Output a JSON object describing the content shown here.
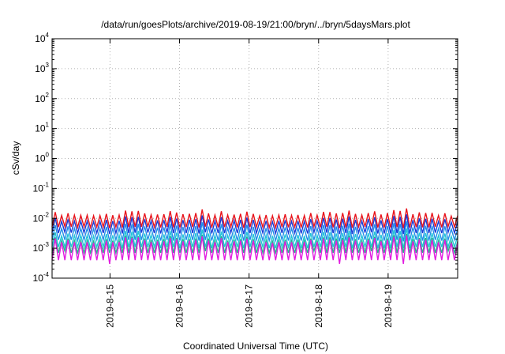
{
  "chart_data": {
    "type": "line",
    "title": "/data/run/goesPlots/archive/2019-08-19/21:00/bryn/../bryn/5daysMars.plot",
    "xlabel": "Coordinated Universal Time (UTC)",
    "ylabel": "cSv/day",
    "x_range": [
      "2019-08-14 04:00",
      "2019-08-20 00:00"
    ],
    "yscale": "log",
    "ylim": [
      0.0001,
      10000
    ],
    "y_ticks": [
      {
        "base": "10",
        "exp": "-4",
        "value": 0.0001
      },
      {
        "base": "10",
        "exp": "-3",
        "value": 0.001
      },
      {
        "base": "10",
        "exp": "-2",
        "value": 0.01
      },
      {
        "base": "10",
        "exp": "-1",
        "value": 0.1
      },
      {
        "base": "10",
        "exp": "0",
        "value": 1
      },
      {
        "base": "10",
        "exp": "1",
        "value": 10
      },
      {
        "base": "10",
        "exp": "2",
        "value": 100
      },
      {
        "base": "10",
        "exp": "3",
        "value": 1000
      },
      {
        "base": "10",
        "exp": "4",
        "value": 10000
      }
    ],
    "x_ticks": [
      {
        "label": "2019-8-15",
        "value": "2019-08-15 00:00"
      },
      {
        "label": "2019-8-16",
        "value": "2019-08-16 00:00"
      },
      {
        "label": "2019-8-17",
        "value": "2019-08-17 00:00"
      },
      {
        "label": "2019-8-18",
        "value": "2019-08-18 00:00"
      },
      {
        "label": "2019-8-19",
        "value": "2019-08-19 00:00"
      }
    ],
    "grid": true,
    "series": [
      {
        "color": "#e8141c",
        "values": [
          0.0052,
          0.0161,
          0.0051,
          0.0125,
          0.0053,
          0.0147,
          0.0052,
          0.0128,
          0.005,
          0.0126,
          0.0052,
          0.0128,
          0.0049,
          0.0122,
          0.0051,
          0.0124,
          0.0051,
          0.014,
          0.0047,
          0.0127,
          0.0051,
          0.0129,
          0.0049,
          0.0181,
          0.0051,
          0.0171,
          0.0052,
          0.0177,
          0.0052,
          0.0146,
          0.0052,
          0.013,
          0.0051,
          0.0134,
          0.0049,
          0.0137,
          0.0052,
          0.0174,
          0.005,
          0.0155,
          0.0049,
          0.0138,
          0.0051,
          0.0142,
          0.0051,
          0.0149,
          0.0049,
          0.0197,
          0.0053,
          0.0145,
          0.0049,
          0.0128,
          0.005,
          0.0172,
          0.0051,
          0.0129,
          0.0052,
          0.0133,
          0.005,
          0.0141,
          0.0048,
          0.0166,
          0.0051,
          0.014,
          0.0051,
          0.0121,
          0.005,
          0.0129,
          0.0049,
          0.0122,
          0.0049,
          0.0129,
          0.0051,
          0.0136,
          0.005,
          0.0125,
          0.0051,
          0.013,
          0.0049,
          0.0124,
          0.0049,
          0.0149,
          0.0053,
          0.0127,
          0.005,
          0.0163,
          0.0052,
          0.0161,
          0.005,
          0.0145,
          0.0047,
          0.0151,
          0.005,
          0.0181,
          0.0048,
          0.014,
          0.0052,
          0.0128,
          0.0052,
          0.015,
          0.0054,
          0.0171,
          0.0049,
          0.0134,
          0.0049,
          0.0149,
          0.0049,
          0.0188,
          0.0051,
          0.0177,
          0.0047,
          0.0213,
          0.0049,
          0.0137,
          0.0051,
          0.0157,
          0.005,
          0.0151,
          0.005,
          0.0152,
          0.0052,
          0.0125,
          0.005,
          0.0147,
          0.0053,
          0.0119,
          0.0051,
          0.0122
        ]
      },
      {
        "color": "#1a3bd6",
        "values": [
          0.0033,
          0.0102,
          0.0032,
          0.0079,
          0.0034,
          0.0093,
          0.0033,
          0.0081,
          0.0032,
          0.008,
          0.0033,
          0.0081,
          0.0031,
          0.0077,
          0.0032,
          0.0079,
          0.0032,
          0.0089,
          0.003,
          0.0081,
          0.0032,
          0.0082,
          0.0031,
          0.0115,
          0.0032,
          0.0108,
          0.0033,
          0.0112,
          0.0033,
          0.0093,
          0.0033,
          0.0082,
          0.0032,
          0.0085,
          0.0031,
          0.0087,
          0.0033,
          0.011,
          0.0032,
          0.0098,
          0.0031,
          0.0087,
          0.0032,
          0.009,
          0.0032,
          0.0094,
          0.0031,
          0.0125,
          0.0034,
          0.0092,
          0.0031,
          0.0081,
          0.0032,
          0.0109,
          0.0032,
          0.0082,
          0.0033,
          0.0084,
          0.0032,
          0.0089,
          0.003,
          0.0105,
          0.0032,
          0.0089,
          0.0032,
          0.0077,
          0.0032,
          0.0082,
          0.0031,
          0.0077,
          0.0031,
          0.0082,
          0.0032,
          0.0086,
          0.0032,
          0.0079,
          0.0032,
          0.0082,
          0.0031,
          0.0079,
          0.0031,
          0.0094,
          0.0034,
          0.0081,
          0.0032,
          0.0103,
          0.0033,
          0.0102,
          0.0032,
          0.0092,
          0.003,
          0.0096,
          0.0032,
          0.0115,
          0.003,
          0.0089,
          0.0033,
          0.0081,
          0.0033,
          0.0095,
          0.0034,
          0.0108,
          0.0031,
          0.0085,
          0.0031,
          0.0094,
          0.0031,
          0.0119,
          0.0032,
          0.0112,
          0.003,
          0.0135,
          0.0031,
          0.0087,
          0.0032,
          0.0099,
          0.0032,
          0.0096,
          0.0032,
          0.0096,
          0.0033,
          0.0079,
          0.0032,
          0.0093,
          0.0034,
          0.0075,
          0.0032,
          0.0077
        ]
      },
      {
        "color": "#1f8ee8",
        "values": [
          0.0019,
          0.0059,
          0.0019,
          0.0046,
          0.0019,
          0.0054,
          0.0019,
          0.0047,
          0.0018,
          0.0046,
          0.0019,
          0.0047,
          0.0018,
          0.0045,
          0.0019,
          0.0046,
          0.0019,
          0.0052,
          0.0017,
          0.0047,
          0.0019,
          0.0047,
          0.0018,
          0.0066,
          0.0019,
          0.0063,
          0.0019,
          0.0065,
          0.0019,
          0.0054,
          0.0019,
          0.0048,
          0.0019,
          0.0049,
          0.0018,
          0.005,
          0.0019,
          0.0064,
          0.0018,
          0.0057,
          0.0018,
          0.0051,
          0.0019,
          0.0052,
          0.0019,
          0.0055,
          0.0018,
          0.0073,
          0.0019,
          0.0053,
          0.0018,
          0.0047,
          0.0018,
          0.0063,
          0.0019,
          0.0047,
          0.0019,
          0.0049,
          0.0018,
          0.0052,
          0.0018,
          0.0061,
          0.0019,
          0.0052,
          0.0019,
          0.0045,
          0.0018,
          0.0047,
          0.0018,
          0.0045,
          0.0018,
          0.0047,
          0.0019,
          0.005,
          0.0018,
          0.0046,
          0.0019,
          0.0048,
          0.0018,
          0.0046,
          0.0018,
          0.0055,
          0.0019,
          0.0047,
          0.0018,
          0.006,
          0.0019,
          0.0059,
          0.0018,
          0.0053,
          0.0017,
          0.0056,
          0.0018,
          0.0066,
          0.0018,
          0.0052,
          0.0019,
          0.0047,
          0.0019,
          0.0055,
          0.002,
          0.0063,
          0.0018,
          0.0049,
          0.0018,
          0.0055,
          0.0018,
          0.0069,
          0.0019,
          0.0065,
          0.0017,
          0.0078,
          0.0018,
          0.005,
          0.0019,
          0.0058,
          0.0018,
          0.0056,
          0.0018,
          0.0056,
          0.0019,
          0.0046,
          0.0018,
          0.0054,
          0.0019,
          0.0044,
          0.0019,
          0.0045
        ]
      },
      {
        "color": "#20c4d8",
        "values": [
          0.0011,
          0.0034,
          0.0011,
          0.0026,
          0.0011,
          0.0031,
          0.0011,
          0.0027,
          0.0011,
          0.0027,
          0.0011,
          0.0027,
          0.001,
          0.0026,
          0.0011,
          0.0026,
          0.0011,
          0.003,
          0.001,
          0.0027,
          0.0011,
          0.0027,
          0.001,
          0.0038,
          0.0011,
          0.0036,
          0.0011,
          0.0038,
          0.0011,
          0.0031,
          0.0011,
          0.0028,
          0.0011,
          0.0028,
          0.001,
          0.0029,
          0.0011,
          0.0037,
          0.0011,
          0.0033,
          0.001,
          0.0029,
          0.0011,
          0.003,
          0.0011,
          0.0032,
          0.001,
          0.0042,
          0.0011,
          0.0031,
          0.001,
          0.0027,
          0.0011,
          0.0036,
          0.0011,
          0.0027,
          0.0011,
          0.0028,
          0.0011,
          0.003,
          0.001,
          0.0035,
          0.0011,
          0.003,
          0.0011,
          0.0026,
          0.0011,
          0.0027,
          0.001,
          0.0026,
          0.001,
          0.0027,
          0.0011,
          0.0029,
          0.0011,
          0.0026,
          0.0011,
          0.0028,
          0.001,
          0.0026,
          0.001,
          0.0032,
          0.0011,
          0.0027,
          0.0011,
          0.0035,
          0.0011,
          0.0034,
          0.0011,
          0.0031,
          0.001,
          0.0032,
          0.0011,
          0.0038,
          0.001,
          0.003,
          0.0011,
          0.0027,
          0.0011,
          0.0032,
          0.0011,
          0.0036,
          0.001,
          0.0028,
          0.001,
          0.0032,
          0.001,
          0.004,
          0.0011,
          0.0038,
          0.001,
          0.0045,
          0.001,
          0.0029,
          0.0011,
          0.0033,
          0.0011,
          0.0032,
          0.0011,
          0.0032,
          0.0011,
          0.0027,
          0.0011,
          0.0031,
          0.0011,
          0.0025,
          0.0011,
          0.0026
        ]
      },
      {
        "color": "#2ab08a",
        "values": [
          0.0007,
          0.0023,
          0.0007,
          0.0018,
          0.0008,
          0.0021,
          0.0007,
          0.0018,
          0.0007,
          0.0018,
          0.0007,
          0.0018,
          0.0007,
          0.0017,
          0.0007,
          0.0018,
          0.0007,
          0.002,
          0.0007,
          0.0018,
          0.0007,
          0.0018,
          0.0007,
          0.0026,
          0.0007,
          0.0024,
          0.0007,
          0.0025,
          0.0007,
          0.0021,
          0.0007,
          0.0019,
          0.0007,
          0.0019,
          0.0007,
          0.002,
          0.0007,
          0.0025,
          0.0007,
          0.0022,
          0.0007,
          0.002,
          0.0007,
          0.002,
          0.0007,
          0.0021,
          0.0007,
          0.0028,
          0.0008,
          0.0021,
          0.0007,
          0.0018,
          0.0007,
          0.0025,
          0.0007,
          0.0018,
          0.0007,
          0.0019,
          0.0007,
          0.002,
          0.0007,
          0.0024,
          0.0007,
          0.002,
          0.0007,
          0.0017,
          0.0007,
          0.0018,
          0.0007,
          0.0017,
          0.0007,
          0.0018,
          0.0007,
          0.0019,
          0.0007,
          0.0018,
          0.0007,
          0.0019,
          0.0007,
          0.0018,
          0.0007,
          0.0021,
          0.0008,
          0.0018,
          0.0007,
          0.0023,
          0.0007,
          0.0023,
          0.0007,
          0.0021,
          0.0007,
          0.0022,
          0.0007,
          0.0026,
          0.0007,
          0.002,
          0.0007,
          0.0018,
          0.0007,
          0.0021,
          0.0008,
          0.0024,
          0.0007,
          0.0019,
          0.0007,
          0.0021,
          0.0007,
          0.0027,
          0.0007,
          0.0025,
          0.0007,
          0.003,
          0.0007,
          0.002,
          0.0007,
          0.0022,
          0.0007,
          0.0022,
          0.0007,
          0.0022,
          0.0007,
          0.0018,
          0.0007,
          0.0021,
          0.0008,
          0.0017,
          0.0007,
          0.0017
        ]
      },
      {
        "color": "#e21ce0",
        "values": [
          0.0004,
          0.0021,
          0.0004,
          0.0016,
          0.0004,
          0.0019,
          0.0004,
          0.0016,
          0.0004,
          0.0016,
          0.0004,
          0.0016,
          0.0004,
          0.0015,
          0.0004,
          0.0016,
          0.0004,
          0.0018,
          0.0003,
          0.0016,
          0.0004,
          0.0016,
          0.0004,
          0.0023,
          0.0004,
          0.0022,
          0.0004,
          0.0023,
          0.0004,
          0.0019,
          0.0004,
          0.0016,
          0.0004,
          0.0017,
          0.0004,
          0.0017,
          0.0004,
          0.0022,
          0.0004,
          0.002,
          0.0004,
          0.0017,
          0.0004,
          0.0018,
          0.0004,
          0.0019,
          0.0004,
          0.0025,
          0.0004,
          0.0018,
          0.0004,
          0.0016,
          0.0004,
          0.0022,
          0.0004,
          0.0016,
          0.0004,
          0.0017,
          0.0004,
          0.0018,
          0.0004,
          0.0021,
          0.0004,
          0.0018,
          0.0004,
          0.0015,
          0.0004,
          0.0016,
          0.0004,
          0.0015,
          0.0004,
          0.0016,
          0.0004,
          0.0017,
          0.0004,
          0.0016,
          0.0004,
          0.0016,
          0.0004,
          0.0016,
          0.0004,
          0.0019,
          0.0004,
          0.0016,
          0.0004,
          0.0021,
          0.0004,
          0.002,
          0.0004,
          0.0018,
          0.0003,
          0.0019,
          0.0004,
          0.0023,
          0.0004,
          0.0018,
          0.0004,
          0.0016,
          0.0004,
          0.0019,
          0.0004,
          0.0022,
          0.0004,
          0.0017,
          0.0004,
          0.0019,
          0.0004,
          0.0024,
          0.0004,
          0.0022,
          0.0003,
          0.0027,
          0.0004,
          0.0017,
          0.0004,
          0.002,
          0.0004,
          0.0019,
          0.0004,
          0.0019,
          0.0004,
          0.0016,
          0.0004,
          0.0019,
          0.0004,
          0.0015,
          0.0004,
          0.0015
        ]
      }
    ]
  }
}
